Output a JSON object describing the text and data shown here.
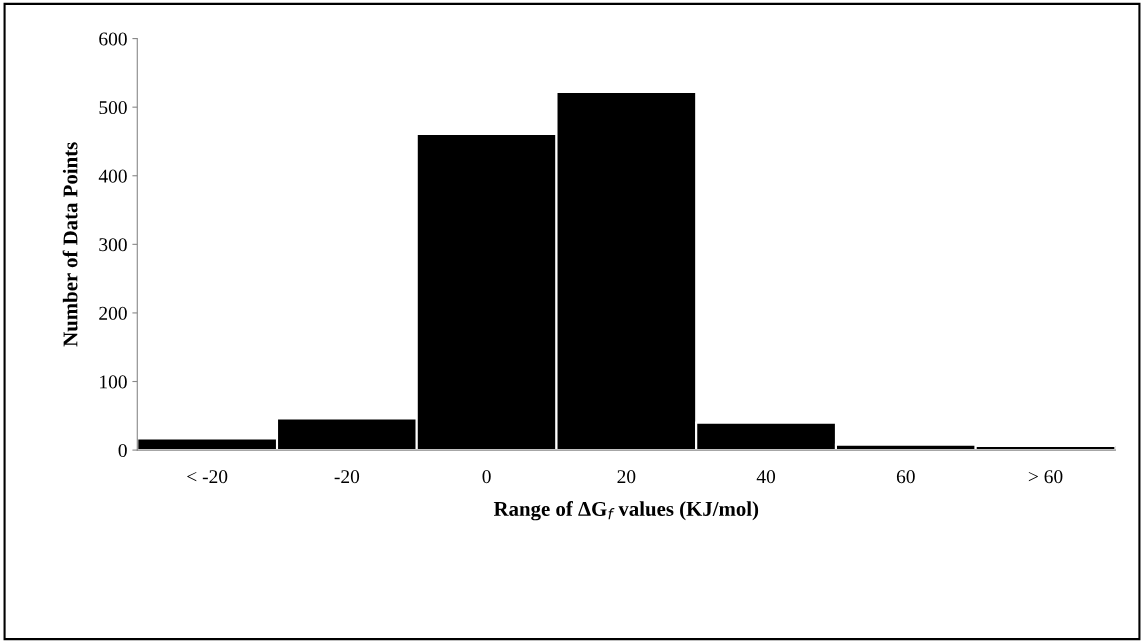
{
  "chart_data": {
    "type": "bar",
    "xlabel": "Range of ΔG$_{f}$ values (KJ/mol)",
    "ylabel": "Number of Data Points",
    "categories": [
      "< -20",
      "-20",
      "0",
      "20",
      "40",
      "60",
      "> 60"
    ],
    "values": [
      17,
      46,
      461,
      522,
      40,
      8,
      6
    ],
    "color": "#000000",
    "ylim": [
      0,
      600
    ],
    "yticks": [
      0,
      100,
      200,
      300,
      400,
      500,
      600
    ],
    "grid": false
  }
}
